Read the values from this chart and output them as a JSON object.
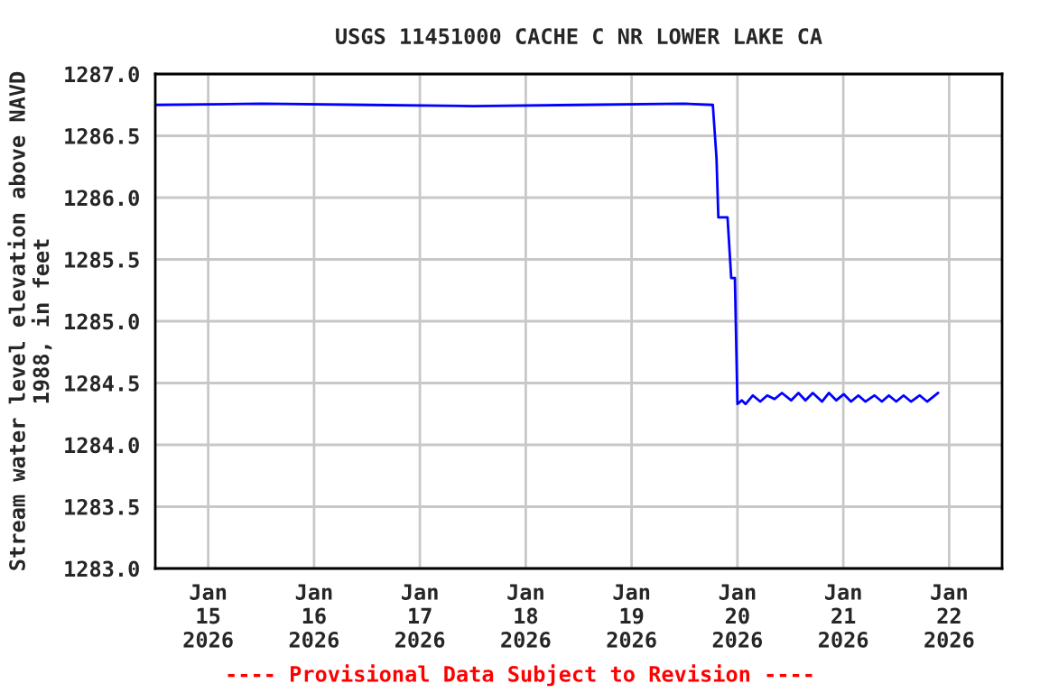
{
  "chart_data": {
    "type": "line",
    "title": "USGS 11451000 CACHE C NR LOWER LAKE CA",
    "ylabel": "Stream water level elevation above NAVD\n1988, in feet",
    "annotations": [
      "---- Provisional Data Subject to Revision ----"
    ],
    "x": [
      "2026-01-14T12:00",
      "2026-01-15T12:00",
      "2026-01-16T12:00",
      "2026-01-17T12:00",
      "2026-01-18T12:00",
      "2026-01-19T12:00",
      "2026-01-19T18:25",
      "2026-01-19T19:15",
      "2026-01-19T19:40",
      "2026-01-19T21:45",
      "2026-01-19T22:35",
      "2026-01-19T23:25",
      "2026-01-20T00:00",
      "2026-01-20T01:00",
      "2026-01-20T01:50",
      "2026-01-20T03:30",
      "2026-01-20T05:10",
      "2026-01-20T06:45",
      "2026-01-20T08:25",
      "2026-01-20T10:05",
      "2026-01-20T12:10",
      "2026-01-20T13:50",
      "2026-01-20T15:25",
      "2026-01-20T17:05",
      "2026-01-20T19:10",
      "2026-01-20T20:45",
      "2026-01-20T22:25",
      "2026-01-21T00:05",
      "2026-01-21T01:45",
      "2026-01-21T03:25",
      "2026-01-21T05:00",
      "2026-01-21T07:05",
      "2026-01-21T08:45",
      "2026-01-21T10:20",
      "2026-01-21T12:00",
      "2026-01-21T13:40",
      "2026-01-21T15:20",
      "2026-01-21T17:20",
      "2026-01-21T19:00",
      "2026-01-21T21:30"
    ],
    "series": [
      {
        "color": "#0000ff",
        "values": [
          1286.75,
          1286.76,
          1286.75,
          1286.74,
          1286.75,
          1286.76,
          1286.75,
          1286.32,
          1285.84,
          1285.84,
          1285.35,
          1285.35,
          1284.33,
          1284.36,
          1284.33,
          1284.4,
          1284.35,
          1284.4,
          1284.37,
          1284.42,
          1284.36,
          1284.42,
          1284.36,
          1284.42,
          1284.35,
          1284.42,
          1284.36,
          1284.41,
          1284.35,
          1284.4,
          1284.35,
          1284.4,
          1284.35,
          1284.4,
          1284.35,
          1284.4,
          1284.35,
          1284.4,
          1284.35,
          1284.42
        ]
      }
    ],
    "xlim": [
      "2026-01-14T12:00",
      "2026-01-22T12:00"
    ],
    "xticks": [
      {
        "value": "2026-01-15",
        "label": "Jan\n15\n2026"
      },
      {
        "value": "2026-01-16",
        "label": "Jan\n16\n2026"
      },
      {
        "value": "2026-01-17",
        "label": "Jan\n17\n2026"
      },
      {
        "value": "2026-01-18",
        "label": "Jan\n18\n2026"
      },
      {
        "value": "2026-01-19",
        "label": "Jan\n19\n2026"
      },
      {
        "value": "2026-01-20",
        "label": "Jan\n20\n2026"
      },
      {
        "value": "2026-01-21",
        "label": "Jan\n21\n2026"
      },
      {
        "value": "2026-01-22",
        "label": "Jan\n22\n2026"
      }
    ],
    "ylim": [
      1283.0,
      1287.0
    ],
    "yticks": [
      {
        "value": 1283.0,
        "label": "1283.0"
      },
      {
        "value": 1283.5,
        "label": "1283.5"
      },
      {
        "value": 1284.0,
        "label": "1284.0"
      },
      {
        "value": 1284.5,
        "label": "1284.5"
      },
      {
        "value": 1285.0,
        "label": "1285.0"
      },
      {
        "value": 1285.5,
        "label": "1285.5"
      },
      {
        "value": 1286.0,
        "label": "1286.0"
      },
      {
        "value": 1286.5,
        "label": "1286.5"
      },
      {
        "value": 1287.0,
        "label": "1287.0"
      }
    ],
    "grid": true,
    "line_style": "solid",
    "marker": "none"
  }
}
